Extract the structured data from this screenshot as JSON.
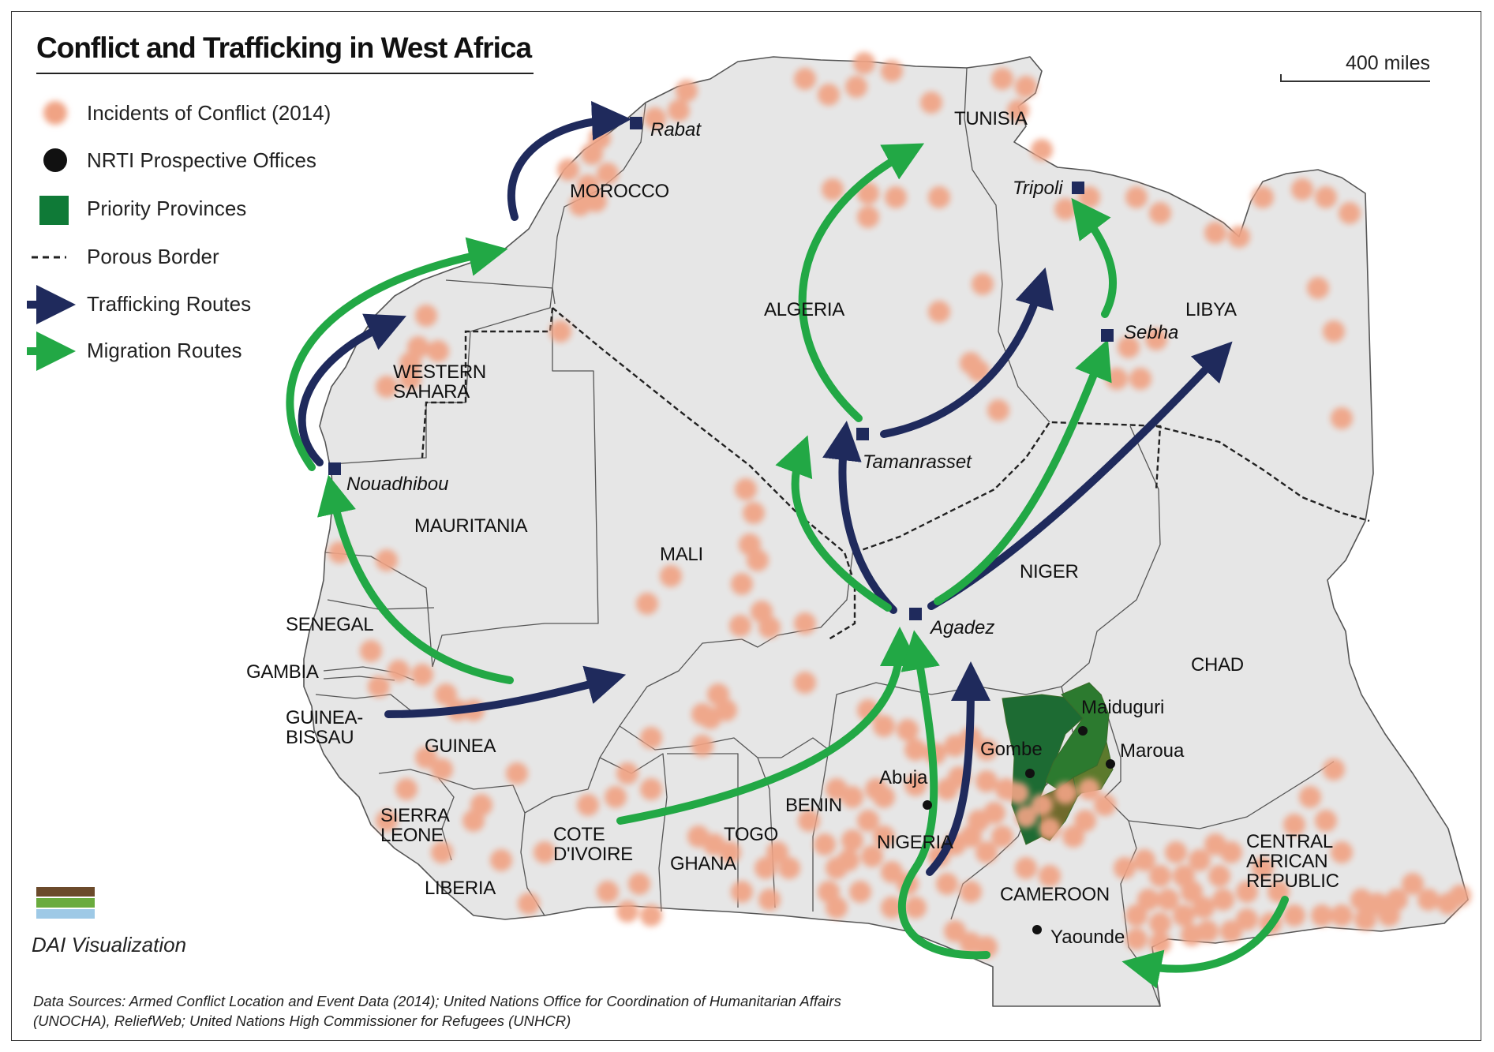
{
  "title": "Conflict and Trafficking in West Africa",
  "legend": [
    {
      "label": "Incidents of Conflict (2014)",
      "symbol": "conflict-dot",
      "color": "#f0a384"
    },
    {
      "label": "NRTI Prospective Offices",
      "symbol": "office-dot",
      "color": "#111111"
    },
    {
      "label": "Priority Provinces",
      "symbol": "province-square",
      "color": "#0f7a37"
    },
    {
      "label": "Porous Border",
      "symbol": "dashed-line",
      "color": "#222222"
    },
    {
      "label": "Trafficking Routes",
      "symbol": "arrow",
      "color": "#1f2a5c"
    },
    {
      "label": "Migration Routes",
      "symbol": "arrow",
      "color": "#22a845"
    }
  ],
  "scale": {
    "label": "400 miles"
  },
  "countries": {
    "morocco": "MOROCCO",
    "tunisia": "TUNISIA",
    "algeria": "ALGERIA",
    "libya": "LIBYA",
    "western_sahara": "WESTERN\nSAHARA",
    "mauritania": "MAURITANIA",
    "mali": "MALI",
    "niger": "NIGER",
    "chad": "CHAD",
    "senegal": "SENEGAL",
    "gambia": "GAMBIA",
    "guinea_bissau": "GUINEA-\nBISSAU",
    "guinea": "GUINEA",
    "sierra_leone": "SIERRA\nLEONE",
    "liberia": "LIBERIA",
    "cote_divoire": "COTE\nD'IVOIRE",
    "ghana": "GHANA",
    "togo": "TOGO",
    "benin": "BENIN",
    "nigeria": "NIGERIA",
    "cameroon": "CAMEROON",
    "car": "CENTRAL\nAFRICAN\nREPUBLIC"
  },
  "hubs": {
    "rabat": "Rabat",
    "tripoli": "Tripoli",
    "sebha": "Sebha",
    "tamanrasset": "Tamanrasset",
    "nouadhibou": "Nouadhibou",
    "agadez": "Agadez"
  },
  "offices": {
    "maiduguri": "Maiduguri",
    "gombe": "Gombe",
    "maroua": "Maroua",
    "abuja": "Abuja",
    "yaounde": "Yaounde"
  },
  "colors": {
    "land": "#e6e6e6",
    "border": "#555555",
    "conflict": "#f0a384",
    "trafficking": "#1f2a5c",
    "migration": "#22a845",
    "hub": "#1f2a5c",
    "province": "#0f7a37"
  },
  "credit": {
    "name": "DAI Visualization",
    "logo_colors": [
      "#6b4a2b",
      "#6aab3e",
      "#9ec9e6"
    ]
  },
  "sources": "Data Sources: Armed Conflict Location and Event Data (2014); United Nations Office for Coordination of Humanitarian Affairs (UNOCHA), ReliefWeb; United Nations High Commissioner for Refugees (UNHCR)"
}
